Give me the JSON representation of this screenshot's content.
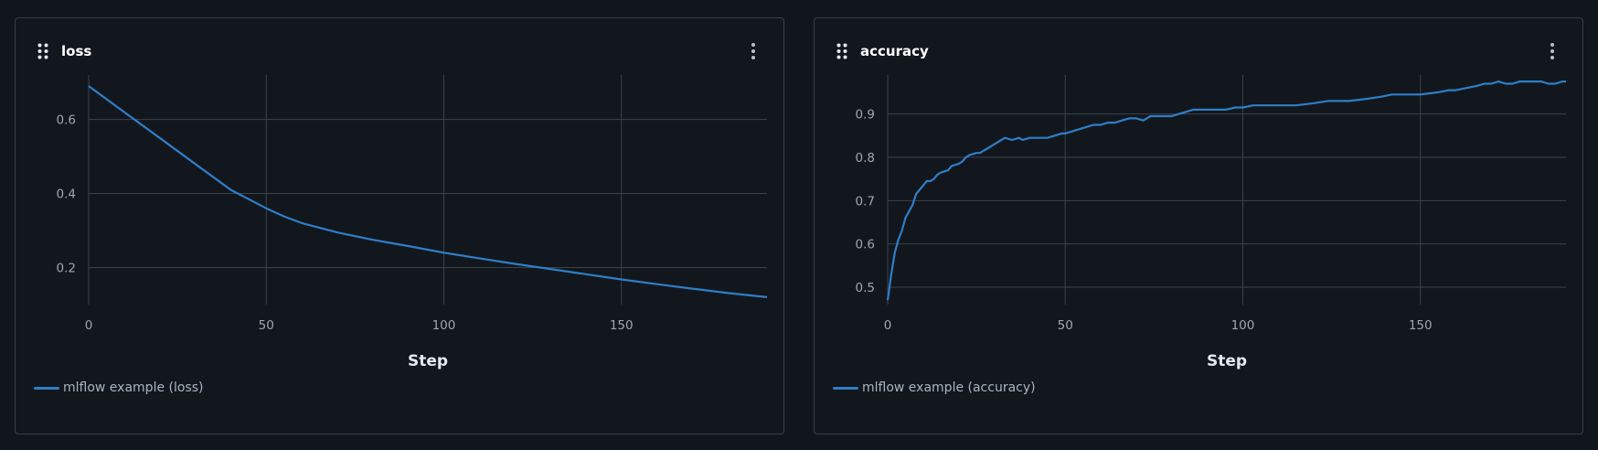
{
  "cards": [
    {
      "title": "loss",
      "icon": "drag-handle-icon",
      "menu_icon": "kebab-menu-icon",
      "legend": "mlflow example (loss)",
      "series_color": "#2f7ec7"
    },
    {
      "title": "accuracy",
      "icon": "drag-handle-icon",
      "menu_icon": "kebab-menu-icon",
      "legend": "mlflow example (accuracy)",
      "series_color": "#2f7ec7"
    }
  ],
  "chart_data": [
    {
      "type": "line",
      "title": "loss",
      "xlabel": "Step",
      "ylabel": "",
      "xlim": [
        0,
        191
      ],
      "ylim": [
        0.1,
        0.72
      ],
      "xticks": [
        0,
        50,
        100,
        150
      ],
      "yticks": [
        0.2,
        0.4,
        0.6
      ],
      "ytick_labels": [
        "0.2",
        "0.4",
        "0.6"
      ],
      "grid": true,
      "legend_position": "bottom-left",
      "series": [
        {
          "name": "mlflow example (loss)",
          "x": [
            0,
            10,
            20,
            30,
            40,
            50,
            55,
            60,
            70,
            80,
            90,
            100,
            110,
            120,
            130,
            140,
            150,
            160,
            170,
            180,
            191
          ],
          "y": [
            0.69,
            0.62,
            0.55,
            0.48,
            0.41,
            0.36,
            0.338,
            0.32,
            0.295,
            0.275,
            0.258,
            0.24,
            0.225,
            0.21,
            0.196,
            0.182,
            0.168,
            0.155,
            0.143,
            0.131,
            0.12
          ]
        }
      ]
    },
    {
      "type": "line",
      "title": "accuracy",
      "xlabel": "Step",
      "ylabel": "",
      "xlim": [
        0,
        191
      ],
      "ylim": [
        0.46,
        0.99
      ],
      "xticks": [
        0,
        50,
        100,
        150
      ],
      "yticks": [
        0.5,
        0.6,
        0.7,
        0.8,
        0.9
      ],
      "ytick_labels": [
        "0.5",
        "0.6",
        "0.7",
        "0.8",
        "0.9"
      ],
      "grid": true,
      "legend_position": "bottom-left",
      "series": [
        {
          "name": "mlflow example (accuracy)",
          "x": [
            0,
            1,
            2,
            3,
            4,
            5,
            6,
            7,
            8,
            9,
            10,
            11,
            12,
            13,
            14,
            15,
            17,
            18,
            20,
            21,
            22,
            23,
            25,
            26,
            28,
            30,
            31,
            33,
            35,
            37,
            38,
            40,
            42,
            45,
            47,
            49,
            50,
            52,
            54,
            56,
            58,
            60,
            62,
            64,
            66,
            68,
            70,
            72,
            74,
            76,
            78,
            80,
            82,
            84,
            86,
            88,
            90,
            92,
            95,
            98,
            100,
            103,
            105,
            110,
            115,
            120,
            124,
            127,
            130,
            135,
            139,
            142,
            145,
            150,
            155,
            158,
            160,
            163,
            166,
            168,
            170,
            172,
            174,
            176,
            178,
            180,
            182,
            184,
            186,
            188,
            190,
            191
          ],
          "y": [
            0.47,
            0.53,
            0.58,
            0.61,
            0.63,
            0.66,
            0.675,
            0.69,
            0.715,
            0.725,
            0.735,
            0.745,
            0.745,
            0.75,
            0.76,
            0.765,
            0.77,
            0.78,
            0.785,
            0.79,
            0.8,
            0.805,
            0.81,
            0.81,
            0.82,
            0.83,
            0.835,
            0.845,
            0.84,
            0.845,
            0.84,
            0.845,
            0.845,
            0.845,
            0.85,
            0.855,
            0.855,
            0.86,
            0.865,
            0.87,
            0.875,
            0.875,
            0.88,
            0.88,
            0.885,
            0.89,
            0.89,
            0.885,
            0.895,
            0.895,
            0.895,
            0.895,
            0.9,
            0.905,
            0.91,
            0.91,
            0.91,
            0.91,
            0.91,
            0.915,
            0.915,
            0.92,
            0.92,
            0.92,
            0.92,
            0.925,
            0.93,
            0.93,
            0.93,
            0.935,
            0.94,
            0.945,
            0.945,
            0.945,
            0.95,
            0.955,
            0.955,
            0.96,
            0.965,
            0.97,
            0.97,
            0.975,
            0.97,
            0.97,
            0.975,
            0.975,
            0.975,
            0.975,
            0.97,
            0.97,
            0.975,
            0.975
          ]
        }
      ]
    }
  ]
}
